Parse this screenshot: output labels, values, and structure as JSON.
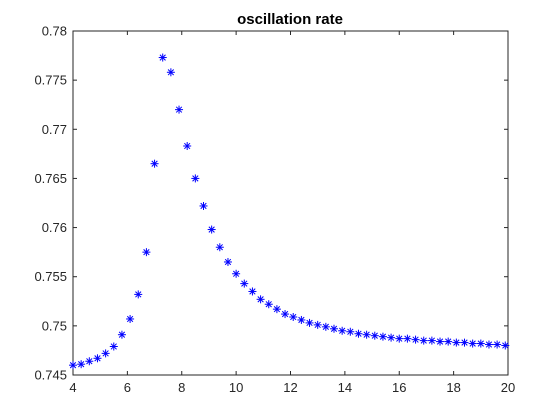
{
  "chart_data": {
    "type": "scatter",
    "title": "oscillation rate",
    "xlabel": "",
    "ylabel": "",
    "xlim": [
      4,
      20
    ],
    "ylim": [
      0.745,
      0.78
    ],
    "xticks": [
      4,
      6,
      8,
      10,
      12,
      14,
      16,
      18,
      20
    ],
    "yticks": [
      0.745,
      0.75,
      0.755,
      0.76,
      0.765,
      0.77,
      0.775,
      0.78
    ],
    "ytick_labels": [
      "0.745",
      "0.75",
      "0.755",
      "0.76",
      "0.765",
      "0.77",
      "0.775",
      "0.78"
    ],
    "grid": false,
    "marker": "*",
    "marker_color": "#0000ff",
    "series": [
      {
        "x": [
          4.0,
          4.3,
          4.6,
          4.9,
          5.2,
          5.5,
          5.8,
          6.1,
          6.4,
          6.7,
          7.0,
          7.3,
          7.6,
          7.9,
          8.2,
          8.5,
          8.8,
          9.1,
          9.4,
          9.7,
          10.0,
          10.3,
          10.6,
          10.9,
          11.2,
          11.5,
          11.8,
          12.1,
          12.4,
          12.7,
          13.0,
          13.3,
          13.6,
          13.9,
          14.2,
          14.5,
          14.8,
          15.1,
          15.4,
          15.7,
          16.0,
          16.3,
          16.6,
          16.9,
          17.2,
          17.5,
          17.8,
          18.1,
          18.4,
          18.7,
          19.0,
          19.3,
          19.6,
          19.9
        ],
        "y": [
          0.746,
          0.7461,
          0.7464,
          0.7467,
          0.7472,
          0.7479,
          0.7491,
          0.7507,
          0.7532,
          0.7575,
          0.7665,
          0.7773,
          0.7758,
          0.772,
          0.7683,
          0.765,
          0.7622,
          0.7598,
          0.758,
          0.7565,
          0.7553,
          0.7543,
          0.7535,
          0.7527,
          0.7522,
          0.7517,
          0.7512,
          0.7509,
          0.7506,
          0.7503,
          0.7501,
          0.7499,
          0.7497,
          0.7495,
          0.7494,
          0.7492,
          0.7491,
          0.749,
          0.7489,
          0.7488,
          0.7487,
          0.7487,
          0.7486,
          0.7485,
          0.7485,
          0.7484,
          0.7484,
          0.7483,
          0.7483,
          0.7482,
          0.7482,
          0.7481,
          0.7481,
          0.748
        ]
      }
    ]
  }
}
